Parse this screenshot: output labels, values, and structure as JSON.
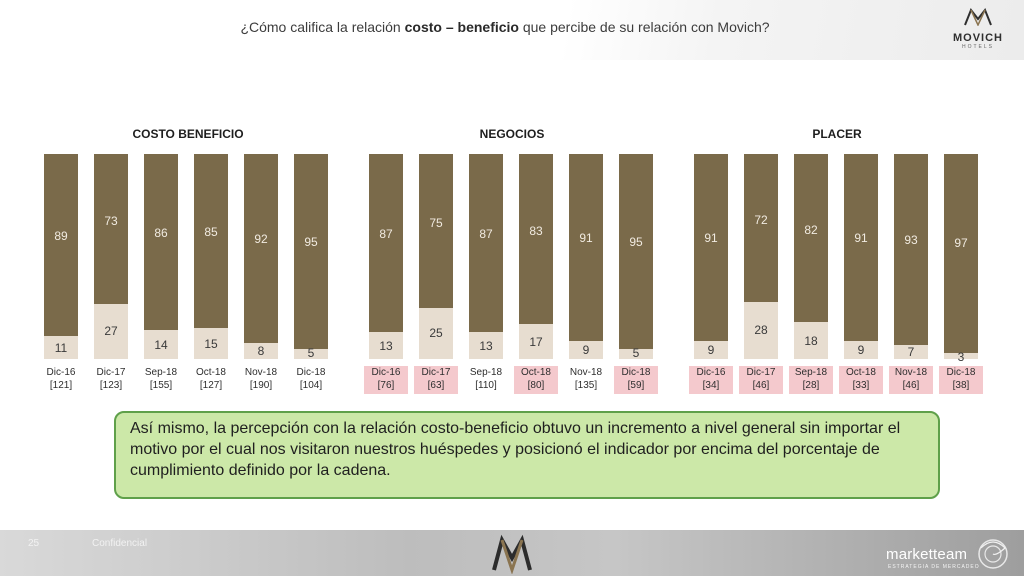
{
  "header": {
    "title_pre": "¿Cómo califica la relación ",
    "title_bold": "costo – beneficio",
    "title_post": " que percibe de su relación con Movich?",
    "logo_text": "MOVICH",
    "logo_sub": "HOTELS"
  },
  "chart_data": [
    {
      "type": "bar",
      "stacked": true,
      "percent": true,
      "title": "COSTO BENEFICIO",
      "categories": [
        "Dic-16",
        "Dic-17",
        "Sep-18",
        "Oct-18",
        "Nov-18",
        "Dic-18"
      ],
      "sample_sizes": [
        "[121]",
        "[123]",
        "[155]",
        "[127]",
        "[190]",
        "[104]"
      ],
      "highlighted": [
        false,
        false,
        false,
        false,
        false,
        false
      ],
      "series": [
        {
          "values": [
            89,
            73,
            86,
            85,
            92,
            95
          ],
          "color": "#7a6a4a"
        },
        {
          "values": [
            11,
            27,
            14,
            15,
            8,
            5
          ],
          "color": "#e7ddd0"
        }
      ],
      "ylim": [
        0,
        100
      ]
    },
    {
      "type": "bar",
      "stacked": true,
      "percent": true,
      "title": "NEGOCIOS",
      "categories": [
        "Dic-16",
        "Dic-17",
        "Sep-18",
        "Oct-18",
        "Nov-18",
        "Dic-18"
      ],
      "sample_sizes": [
        "[76]",
        "[63]",
        "[110]",
        "[80]",
        "[135]",
        "[59]"
      ],
      "highlighted": [
        true,
        true,
        false,
        true,
        false,
        true
      ],
      "series": [
        {
          "values": [
            87,
            75,
            87,
            83,
            91,
            95
          ],
          "color": "#7a6a4a"
        },
        {
          "values": [
            13,
            25,
            13,
            17,
            9,
            5
          ],
          "color": "#e7ddd0"
        }
      ],
      "ylim": [
        0,
        100
      ]
    },
    {
      "type": "bar",
      "stacked": true,
      "percent": true,
      "title": "PLACER",
      "categories": [
        "Dic-16",
        "Dic-17",
        "Sep-18",
        "Oct-18",
        "Nov-18",
        "Dic-18"
      ],
      "sample_sizes": [
        "[34]",
        "[46]",
        "[28]",
        "[33]",
        "[46]",
        "[38]"
      ],
      "highlighted": [
        true,
        true,
        true,
        true,
        true,
        true
      ],
      "series": [
        {
          "values": [
            91,
            72,
            82,
            91,
            93,
            97
          ],
          "color": "#7a6a4a"
        },
        {
          "values": [
            9,
            28,
            18,
            9,
            7,
            3
          ],
          "color": "#e7ddd0"
        }
      ],
      "ylim": [
        0,
        100
      ]
    }
  ],
  "note": {
    "text": "Así mismo, la percepción con la relación costo-beneficio obtuvo un incremento a nivel general sin importar el motivo por el cual nos visitaron nuestros huéspedes y posicionó el indicador por encima del porcentaje de cumplimiento definido por la cadena."
  },
  "footer": {
    "page_number": "25",
    "label": "Confidencial",
    "brand": "marketteam",
    "brand_sub": "ESTRATEGIA DE MERCADEO"
  },
  "colors": {
    "bar_dark": "#7a6a4a",
    "bar_light": "#e7ddd0",
    "highlight": "#f4c9cd",
    "note_bg": "#cce8a8",
    "note_border": "#5fa04a"
  }
}
